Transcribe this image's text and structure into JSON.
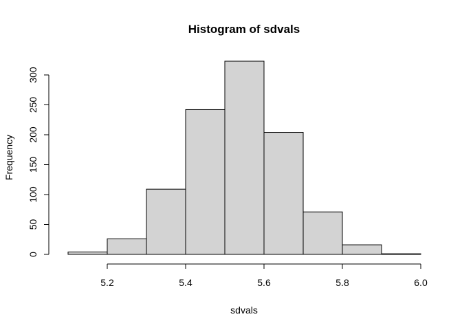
{
  "chart_data": {
    "type": "bar",
    "title": "Histogram of sdvals",
    "xlabel": "sdvals",
    "ylabel": "Frequency",
    "bins": [
      {
        "start": 5.1,
        "end": 5.2,
        "count": 4
      },
      {
        "start": 5.2,
        "end": 5.3,
        "count": 26
      },
      {
        "start": 5.3,
        "end": 5.4,
        "count": 109
      },
      {
        "start": 5.4,
        "end": 5.5,
        "count": 242
      },
      {
        "start": 5.5,
        "end": 5.6,
        "count": 323
      },
      {
        "start": 5.6,
        "end": 5.7,
        "count": 204
      },
      {
        "start": 5.7,
        "end": 5.8,
        "count": 71
      },
      {
        "start": 5.8,
        "end": 5.9,
        "count": 16
      },
      {
        "start": 5.9,
        "end": 6.0,
        "count": 1
      }
    ],
    "xlim": [
      5.1,
      6.0
    ],
    "ylim": [
      0,
      323
    ],
    "x_ticks": [
      "5.2",
      "5.4",
      "5.6",
      "5.8",
      "6.0"
    ],
    "y_ticks": [
      "0",
      "50",
      "100",
      "150",
      "200",
      "250",
      "300"
    ],
    "bar_fill": "#d3d3d3",
    "bar_stroke": "#000000",
    "grid": false
  }
}
